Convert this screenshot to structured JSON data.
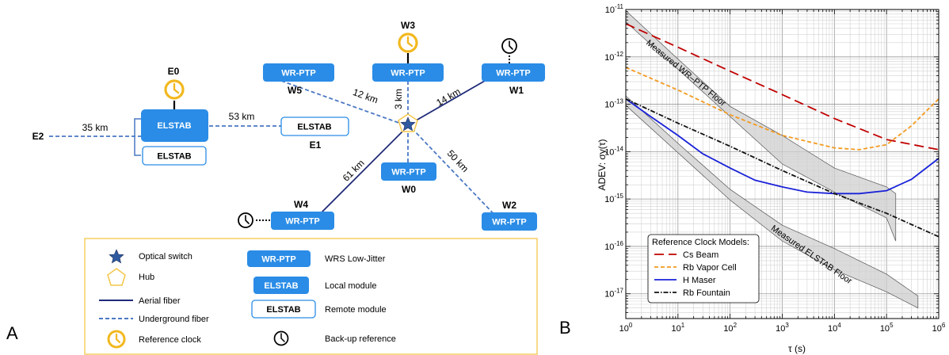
{
  "colors": {
    "module_blue": "#2a8ce6",
    "aerial": "#1f2a7a",
    "underground": "#4a78c4",
    "clock_gold": "#f2b81f",
    "hub_yellow": "#f4c64a",
    "legend_border": "#f4c64a",
    "floor_gray": "#cfcfcf"
  },
  "panel_a": {
    "panel_label": "A",
    "nodes": {
      "e0": "E0",
      "e1": "E1",
      "e2": "E2",
      "w0": "W0",
      "w1": "W1",
      "w2": "W2",
      "w3": "W3",
      "w4": "W4",
      "w5": "W5"
    },
    "boxes": {
      "wrptp": "WR-PTP",
      "elstab": "ELSTAB"
    },
    "distances": {
      "d35": "35 km",
      "d53": "53 km",
      "d12": "12 km",
      "d3": "3 km",
      "d14": "14 km",
      "d61": "61 km",
      "d50": "50 km"
    },
    "legend": {
      "optical_switch": "Optical switch",
      "hub": "Hub",
      "aerial": "Aerial fiber",
      "underground": "Underground fiber",
      "reference_clock": "Reference clock",
      "wrptp_box": "WR-PTP",
      "wrs": "WRS Low-Jitter",
      "local_box": "ELSTAB",
      "local": "Local module",
      "remote_box": "ELSTAB",
      "remote": "Remote module",
      "backup": "Back-up reference"
    }
  },
  "panel_b": {
    "panel_label": "B"
  },
  "chart_data": {
    "type": "line",
    "xlabel": "τ (s)",
    "ylabel": "ADEV: σy(τ)",
    "xscale": "log",
    "yscale": "log",
    "xlim": [
      1,
      1000000
    ],
    "ylim": [
      3e-18,
      1e-11
    ],
    "x_ticks": [
      1,
      10,
      100,
      1000,
      10000,
      100000,
      1000000
    ],
    "x_tick_labels": {
      "base": "10",
      "exps": [
        "0",
        "1",
        "2",
        "3",
        "4",
        "5",
        "6"
      ]
    },
    "y_ticks": [
      1e-11,
      1e-12,
      1e-13,
      1e-14,
      1e-15,
      1e-16,
      1e-17
    ],
    "y_tick_labels": {
      "base": "10",
      "exps": [
        "-11",
        "-12",
        "-13",
        "-14",
        "-15",
        "-16",
        "-17"
      ]
    },
    "grid": true,
    "legend_title": "Reference Clock Models:",
    "legend_position": "bottom-left",
    "series": [
      {
        "name": "Cs Beam",
        "color": "#c00000",
        "dash": "long-dash",
        "x": [
          1,
          10,
          100,
          1000,
          10000,
          100000,
          1000000
        ],
        "y": [
          5e-12,
          1.6e-12,
          5e-13,
          1.6e-13,
          5e-14,
          1.8e-14,
          1.1e-14
        ]
      },
      {
        "name": "Rb Vapor Cell",
        "color": "#f39a1f",
        "dash": "short-dash",
        "x": [
          1,
          10,
          100,
          1000,
          10000,
          30000,
          100000,
          300000,
          1000000
        ],
        "y": [
          6e-13,
          2e-13,
          6e-14,
          2.2e-14,
          1.2e-14,
          1.1e-14,
          1.4e-14,
          3.5e-14,
          1.3e-13
        ]
      },
      {
        "name": "H Maser",
        "color": "#1a22d8",
        "dash": "solid",
        "x": [
          1,
          3,
          10,
          30,
          100,
          300,
          1000,
          3000,
          10000,
          30000,
          100000,
          300000,
          1000000
        ],
        "y": [
          1.3e-13,
          5.5e-14,
          2.2e-14,
          9e-15,
          4.5e-15,
          2.5e-15,
          1.8e-15,
          1.4e-15,
          1.3e-15,
          1.3e-15,
          1.5e-15,
          2.6e-15,
          7.2e-15
        ]
      },
      {
        "name": "Rb Fountain",
        "color": "#111111",
        "dash": "dash-dot",
        "x": [
          1,
          10,
          100,
          1000,
          10000,
          100000,
          1000000
        ],
        "y": [
          1.3e-13,
          4e-14,
          1.3e-14,
          4e-15,
          1.3e-15,
          5e-16,
          1.6e-16
        ]
      }
    ],
    "bands": [
      {
        "name": "Measured WR–PTP Floor",
        "x": [
          1,
          10,
          100,
          1000,
          10000,
          100000,
          150000
        ],
        "y_low": [
          5.5e-12,
          5.5e-13,
          5.5e-14,
          5.5e-15,
          1.4e-15,
          4e-16,
          1.3e-16
        ],
        "y_high": [
          9.5e-12,
          9e-13,
          9e-14,
          2.2e-14,
          4.5e-15,
          1.8e-15,
          1.3e-15
        ]
      },
      {
        "name": "Measured ELSTAB Floor",
        "x": [
          1,
          10,
          100,
          1000,
          10000,
          100000,
          400000
        ],
        "y_low": [
          9.5e-14,
          9.5e-15,
          9.5e-16,
          1.3e-16,
          3.2e-17,
          1.1e-17,
          5e-18
        ],
        "y_high": [
          1.5e-13,
          1.5e-14,
          1.6e-15,
          2.8e-16,
          9e-17,
          2.6e-17,
          9e-18
        ]
      }
    ]
  }
}
